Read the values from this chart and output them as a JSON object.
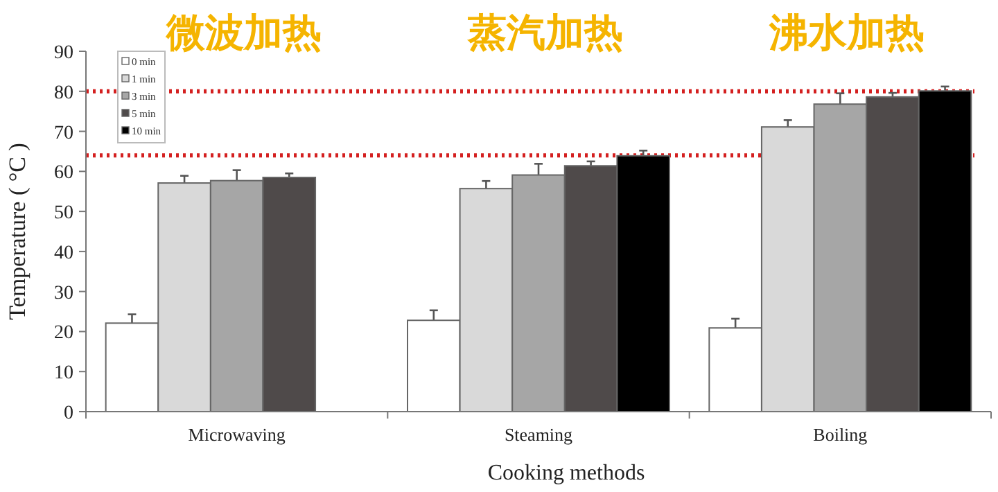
{
  "chart_data": {
    "type": "bar",
    "xlabel": "Cooking methods",
    "ylabel": "Temperature ( °C )",
    "categories": [
      "Microwaving",
      "Steaming",
      "Boiling"
    ],
    "series": [
      {
        "name": "0 min",
        "color": "#ffffff",
        "values": [
          22.1,
          22.8,
          20.9
        ],
        "errors": [
          2.2,
          2.5,
          2.3
        ]
      },
      {
        "name": "1 min",
        "color": "#d9d9d9",
        "values": [
          57.1,
          55.7,
          71.1
        ],
        "errors": [
          1.8,
          1.9,
          1.7
        ]
      },
      {
        "name": "3 min",
        "color": "#a6a6a6",
        "values": [
          57.7,
          59.1,
          76.8
        ],
        "errors": [
          2.6,
          2.8,
          2.7
        ]
      },
      {
        "name": "5 min",
        "color": "#4f4a4a",
        "values": [
          58.5,
          61.4,
          78.6
        ],
        "errors": [
          1.0,
          1.1,
          1.0
        ]
      },
      {
        "name": "10 min",
        "color": "#000000",
        "values": [
          null,
          63.9,
          80.1
        ],
        "errors": [
          null,
          1.3,
          1.1
        ]
      }
    ],
    "ylim": [
      0,
      90
    ],
    "yticks": [
      0,
      10,
      20,
      30,
      40,
      50,
      60,
      70,
      80,
      90
    ],
    "ref_lines": [
      {
        "axis": "y",
        "value": 80,
        "color": "#d42020",
        "line_style": "dotted"
      },
      {
        "axis": "y",
        "value": 64,
        "color": "#d42020",
        "line_style": "dotted"
      }
    ],
    "annotations": [
      "微波加热",
      "蒸汽加热",
      "沸水加热"
    ],
    "legend": "top left",
    "grid": false
  }
}
